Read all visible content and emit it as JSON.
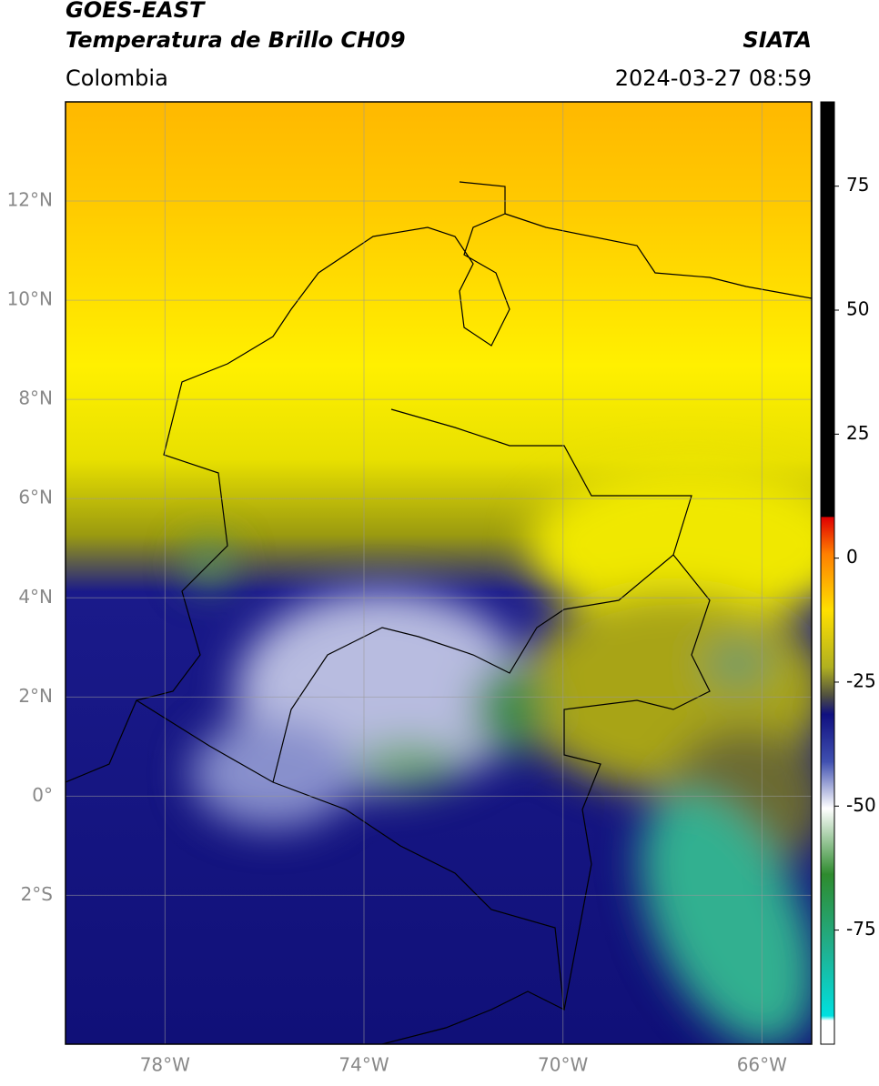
{
  "header": {
    "title": "GOES-EAST",
    "subtitle": "Temperatura de Brillo CH09",
    "source": "SIATA",
    "region": "Colombia",
    "timestamp": "2024-03-27 08:59"
  },
  "map": {
    "lon_range": [
      -80,
      -65
    ],
    "lat_range": [
      -5,
      14
    ],
    "lat_ticks": [
      {
        "value": 12,
        "label": "12°N"
      },
      {
        "value": 10,
        "label": "10°N"
      },
      {
        "value": 8,
        "label": "8°N"
      },
      {
        "value": 6,
        "label": "6°N"
      },
      {
        "value": 4,
        "label": "4°N"
      },
      {
        "value": 2,
        "label": "2°N"
      },
      {
        "value": 0,
        "label": "0°"
      },
      {
        "value": -2,
        "label": "2°S"
      }
    ],
    "lon_ticks": [
      {
        "value": -78,
        "label": "78°W"
      },
      {
        "value": -74,
        "label": "74°W"
      },
      {
        "value": -70,
        "label": "70°W"
      },
      {
        "value": -66,
        "label": "66°W"
      }
    ]
  },
  "colorbar": {
    "range": [
      -98,
      92
    ],
    "ticks": [
      75,
      50,
      25,
      0,
      -25,
      -50,
      -75
    ]
  }
}
